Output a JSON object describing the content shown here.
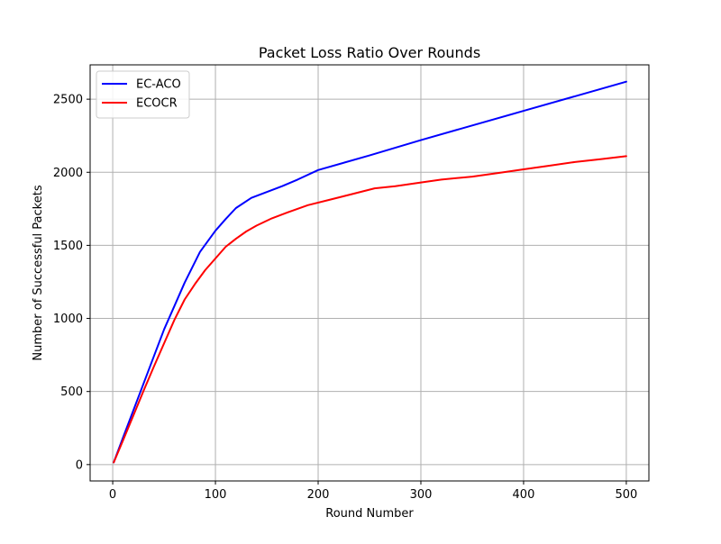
{
  "chart_data": {
    "type": "line",
    "title": "Packet Loss Ratio Over Rounds",
    "xlabel": "Round Number",
    "ylabel": "Number of Successful Packets",
    "xlim": [
      -22,
      522
    ],
    "ylim": [
      -112,
      2735
    ],
    "xticks": [
      0,
      100,
      200,
      300,
      400,
      500
    ],
    "yticks": [
      0,
      500,
      1000,
      1500,
      2000,
      2500
    ],
    "grid": true,
    "legend_position": "top-left",
    "series": [
      {
        "name": "EC-ACO",
        "color": "#0000ff",
        "x": [
          1,
          10,
          20,
          30,
          40,
          50,
          60,
          70,
          85,
          100,
          110,
          120,
          135,
          150,
          165,
          180,
          200,
          250,
          300,
          350,
          400,
          450,
          500
        ],
        "y": [
          15,
          185,
          370,
          555,
          740,
          925,
          1085,
          1245,
          1455,
          1600,
          1680,
          1755,
          1825,
          1865,
          1905,
          1950,
          2015,
          2115,
          2220,
          2320,
          2420,
          2520,
          2620
        ]
      },
      {
        "name": "ECOCR",
        "color": "#ff0000",
        "x": [
          1,
          10,
          20,
          30,
          40,
          50,
          60,
          70,
          80,
          90,
          100,
          110,
          120,
          130,
          140,
          155,
          170,
          190,
          210,
          230,
          255,
          275,
          300,
          320,
          350,
          375,
          400,
          425,
          450,
          475,
          500
        ],
        "y": [
          15,
          165,
          335,
          505,
          670,
          830,
          990,
          1130,
          1235,
          1330,
          1410,
          1490,
          1545,
          1595,
          1635,
          1685,
          1725,
          1775,
          1810,
          1845,
          1890,
          1905,
          1930,
          1950,
          1970,
          1995,
          2020,
          2045,
          2070,
          2090,
          2110
        ]
      }
    ]
  }
}
